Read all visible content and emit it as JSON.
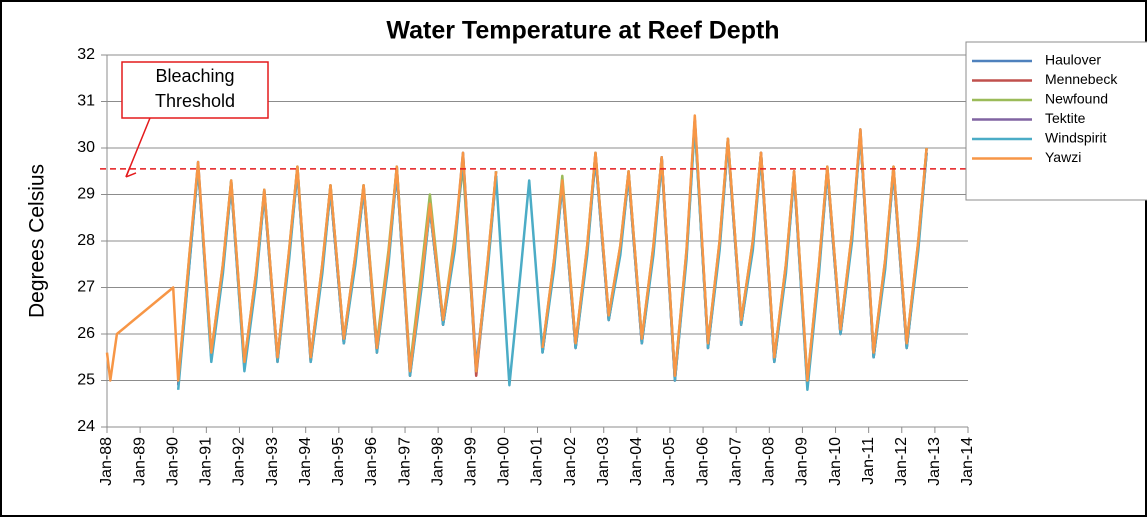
{
  "chart_data": {
    "type": "line",
    "title": "Water Temperature at Reef Depth",
    "y_label": "Degrees Celsius",
    "annotation": {
      "text": [
        "Bleaching",
        "Threshold"
      ],
      "value": 29.55,
      "color": "#e41a1c"
    },
    "xlim": [
      1988,
      2014
    ],
    "xticks": [
      {
        "value": 1988,
        "label": "Jan-88"
      },
      {
        "value": 1989,
        "label": "Jan-89"
      },
      {
        "value": 1990,
        "label": "Jan-90"
      },
      {
        "value": 1991,
        "label": "Jan-91"
      },
      {
        "value": 1992,
        "label": "Jan-92"
      },
      {
        "value": 1993,
        "label": "Jan-93"
      },
      {
        "value": 1994,
        "label": "Jan-94"
      },
      {
        "value": 1995,
        "label": "Jan-95"
      },
      {
        "value": 1996,
        "label": "Jan-96"
      },
      {
        "value": 1997,
        "label": "Jan-97"
      },
      {
        "value": 1998,
        "label": "Jan-98"
      },
      {
        "value": 1999,
        "label": "Jan-99"
      },
      {
        "value": 2000,
        "label": "Jan-00"
      },
      {
        "value": 2001,
        "label": "Jan-01"
      },
      {
        "value": 2002,
        "label": "Jan-02"
      },
      {
        "value": 2003,
        "label": "Jan-03"
      },
      {
        "value": 2004,
        "label": "Jan-04"
      },
      {
        "value": 2005,
        "label": "Jan-05"
      },
      {
        "value": 2006,
        "label": "Jan-06"
      },
      {
        "value": 2007,
        "label": "Jan-07"
      },
      {
        "value": 2008,
        "label": "Jan-08"
      },
      {
        "value": 2009,
        "label": "Jan-09"
      },
      {
        "value": 2010,
        "label": "Jan-10"
      },
      {
        "value": 2011,
        "label": "Jan-11"
      },
      {
        "value": 2012,
        "label": "Jan-12"
      },
      {
        "value": 2013,
        "label": "Jan-13"
      },
      {
        "value": 2014,
        "label": "Jan-14"
      }
    ],
    "ylim": [
      24,
      32
    ],
    "yticks": [
      24,
      25,
      26,
      27,
      28,
      29,
      30,
      31,
      32
    ],
    "grid": true,
    "legend": "right",
    "x": [
      1988,
      1988.1,
      1988.3,
      1990,
      1990.15,
      1990.5,
      1990.75,
      1991.15,
      1991.5,
      1991.75,
      1992.15,
      1992.5,
      1992.75,
      1993.15,
      1993.5,
      1993.75,
      1994.15,
      1994.5,
      1994.75,
      1995.15,
      1995.5,
      1995.75,
      1996.15,
      1996.5,
      1996.75,
      1997.15,
      1997.5,
      1997.75,
      1998.15,
      1998.5,
      1998.75,
      1999.15,
      1999.5,
      1999.75,
      2000.15,
      2000.5,
      2000.75,
      2001.15,
      2001.5,
      2001.75,
      2002.15,
      2002.5,
      2002.75,
      2003.15,
      2003.5,
      2003.75,
      2004.15,
      2004.5,
      2004.75,
      2005.15,
      2005.5,
      2005.75,
      2006.15,
      2006.5,
      2006.75,
      2007.15,
      2007.5,
      2007.75,
      2008.15,
      2008.5,
      2008.75,
      2009.15,
      2009.5,
      2009.75,
      2010.15,
      2010.5,
      2010.75,
      2011.15,
      2011.5,
      2011.75,
      2012.15,
      2012.5,
      2012.75
    ],
    "series": [
      {
        "name": "Haulover",
        "color": "#4f81bd",
        "values": [
          null,
          null,
          null,
          null,
          24.9,
          27.7,
          29.7,
          25.5,
          27.4,
          29.3,
          25.3,
          27.2,
          29.1,
          25.5,
          27.7,
          29.6,
          25.5,
          27.4,
          29.2,
          25.9,
          27.6,
          29.2,
          25.7,
          27.6,
          29.6,
          25.2,
          27.1,
          28.8,
          26.3,
          27.9,
          29.9,
          25.3,
          27.5,
          29.5,
          null,
          null,
          null,
          25.7,
          27.5,
          29.3,
          25.8,
          27.8,
          29.9,
          26.4,
          27.8,
          29.5,
          25.9,
          27.8,
          29.8,
          25.1,
          27.7,
          30.6,
          25.8,
          27.9,
          30.2,
          26.3,
          27.9,
          29.9,
          25.5,
          27.4,
          29.5,
          24.9,
          27.4,
          29.6,
          26.1,
          28.1,
          30.4,
          25.6,
          27.5,
          29.6,
          25.8,
          27.9,
          30.0
        ]
      },
      {
        "name": "Mennebeck",
        "color": "#c0504d",
        "values": [
          null,
          null,
          null,
          null,
          24.9,
          27.7,
          29.6,
          25.5,
          27.4,
          29.2,
          25.3,
          27.2,
          29.0,
          25.4,
          27.7,
          29.5,
          25.4,
          27.4,
          29.1,
          25.8,
          27.6,
          29.1,
          25.6,
          27.6,
          29.5,
          25.1,
          27.1,
          28.7,
          26.2,
          27.9,
          29.8,
          25.1,
          27.5,
          29.4,
          null,
          null,
          null,
          25.6,
          27.5,
          29.2,
          25.7,
          27.8,
          29.8,
          26.3,
          27.8,
          29.4,
          25.8,
          27.8,
          29.7,
          25.0,
          27.7,
          30.6,
          25.7,
          27.9,
          30.1,
          26.2,
          27.9,
          29.8,
          25.4,
          27.4,
          29.4,
          24.9,
          27.4,
          29.5,
          26.0,
          28.1,
          30.3,
          25.5,
          27.5,
          29.5,
          25.7,
          27.9,
          29.9
        ]
      },
      {
        "name": "Newfound",
        "color": "#9bbb59",
        "values": [
          null,
          null,
          null,
          null,
          25.0,
          27.8,
          29.6,
          25.6,
          27.5,
          29.3,
          25.4,
          27.3,
          29.1,
          25.5,
          27.8,
          29.6,
          25.5,
          27.5,
          29.2,
          25.9,
          27.7,
          29.2,
          25.8,
          27.8,
          29.6,
          25.3,
          27.4,
          29.0,
          26.3,
          28.1,
          29.6,
          25.2,
          27.6,
          29.5,
          null,
          null,
          null,
          25.7,
          27.6,
          29.4,
          25.8,
          27.9,
          29.9,
          26.4,
          27.9,
          29.5,
          25.9,
          27.9,
          29.8,
          25.1,
          27.8,
          30.5,
          25.8,
          28.0,
          30.2,
          26.3,
          28.0,
          29.9,
          25.5,
          27.5,
          29.5,
          25.0,
          27.5,
          29.6,
          26.1,
          28.2,
          30.3,
          25.6,
          27.6,
          29.6,
          25.8,
          28.0,
          30.0
        ]
      },
      {
        "name": "Tektite",
        "color": "#8064a2",
        "values": [
          null,
          null,
          null,
          null,
          24.9,
          27.6,
          29.6,
          25.5,
          27.4,
          29.2,
          25.3,
          27.2,
          29.0,
          25.5,
          27.7,
          29.5,
          25.5,
          27.4,
          29.1,
          25.8,
          27.6,
          29.1,
          25.7,
          27.6,
          29.5,
          25.2,
          27.1,
          28.7,
          26.2,
          27.9,
          29.8,
          25.2,
          27.5,
          29.4,
          null,
          null,
          null,
          25.6,
          27.5,
          29.2,
          25.7,
          27.8,
          29.8,
          26.3,
          27.8,
          29.4,
          25.8,
          27.8,
          29.8,
          25.0,
          27.7,
          30.6,
          25.7,
          27.9,
          30.1,
          26.2,
          27.9,
          29.9,
          25.4,
          27.4,
          29.4,
          24.9,
          27.4,
          29.5,
          26.0,
          28.1,
          30.3,
          25.5,
          27.5,
          29.5,
          25.7,
          27.9,
          29.9
        ]
      },
      {
        "name": "Windspirit",
        "color": "#4bacc6",
        "values": [
          null,
          null,
          null,
          null,
          24.8,
          27.6,
          29.6,
          25.4,
          27.3,
          29.2,
          25.2,
          27.1,
          29.0,
          25.4,
          27.6,
          29.5,
          25.4,
          27.3,
          29.1,
          25.8,
          27.5,
          29.1,
          25.6,
          27.5,
          29.5,
          25.1,
          27.0,
          28.7,
          26.2,
          27.8,
          29.8,
          25.2,
          27.4,
          29.4,
          24.9,
          27.4,
          29.3,
          25.6,
          27.4,
          29.2,
          25.7,
          27.7,
          29.8,
          26.3,
          27.7,
          29.4,
          25.8,
          27.7,
          29.7,
          25.0,
          27.6,
          30.5,
          25.7,
          27.8,
          30.1,
          26.2,
          27.8,
          29.8,
          25.4,
          27.3,
          29.4,
          24.8,
          27.3,
          29.5,
          26.0,
          28.0,
          30.3,
          25.5,
          27.4,
          29.5,
          25.7,
          27.8,
          29.9
        ]
      },
      {
        "name": "Yawzi",
        "color": "#f79646",
        "values": [
          25.6,
          25.0,
          26.0,
          27.0,
          25.0,
          27.8,
          29.7,
          25.6,
          27.5,
          29.3,
          25.4,
          27.3,
          29.1,
          25.5,
          27.8,
          29.6,
          25.5,
          27.5,
          29.2,
          25.9,
          27.7,
          29.2,
          25.7,
          27.7,
          29.6,
          25.2,
          27.2,
          28.8,
          26.3,
          28.0,
          29.9,
          25.2,
          27.6,
          29.5,
          null,
          null,
          null,
          25.7,
          27.6,
          29.3,
          25.8,
          27.9,
          29.9,
          26.4,
          27.9,
          29.5,
          25.9,
          27.9,
          29.8,
          25.1,
          27.8,
          30.7,
          25.8,
          28.0,
          30.2,
          26.3,
          28.0,
          29.9,
          25.5,
          27.5,
          29.5,
          25.0,
          27.5,
          29.6,
          26.1,
          28.2,
          30.4,
          25.6,
          27.6,
          29.6,
          25.8,
          28.0,
          30.0
        ]
      }
    ]
  }
}
